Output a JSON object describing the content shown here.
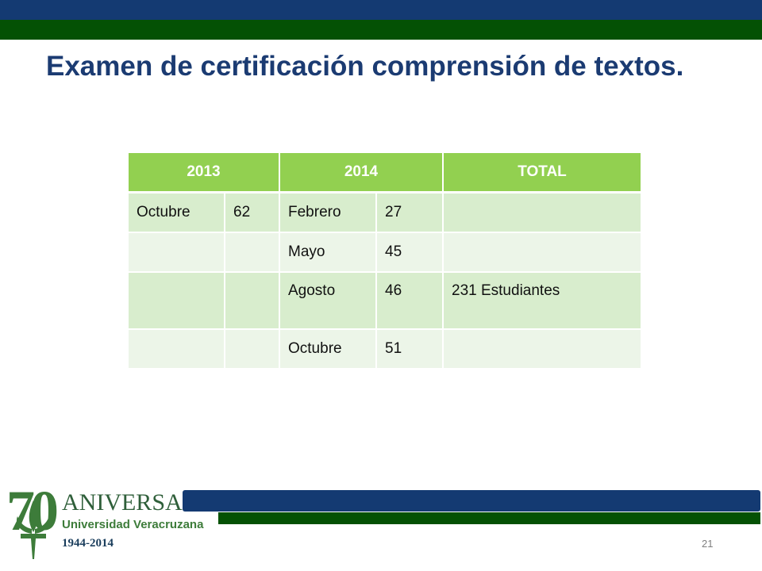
{
  "slide": {
    "title": "Examen de certificación comprensión de textos.",
    "page_number": "21"
  },
  "table": {
    "headers": [
      "2013",
      "2014",
      "TOTAL"
    ],
    "rows": [
      [
        "Octubre",
        "62",
        "Febrero",
        "27",
        ""
      ],
      [
        "",
        "",
        "Mayo",
        "45",
        ""
      ],
      [
        "",
        "",
        "Agosto",
        "46",
        "231 Estudiantes"
      ],
      [
        "",
        "",
        "Octubre",
        "51",
        ""
      ]
    ]
  },
  "logo": {
    "number": "70",
    "line1": "ANIVERSARIO",
    "line2": "Universidad Veracruzana",
    "line3": "1944-2014"
  },
  "colors": {
    "header_green": "#92d050",
    "title_blue": "#1b3b72",
    "bar_blue": "#143a72",
    "bar_green": "#045104"
  }
}
